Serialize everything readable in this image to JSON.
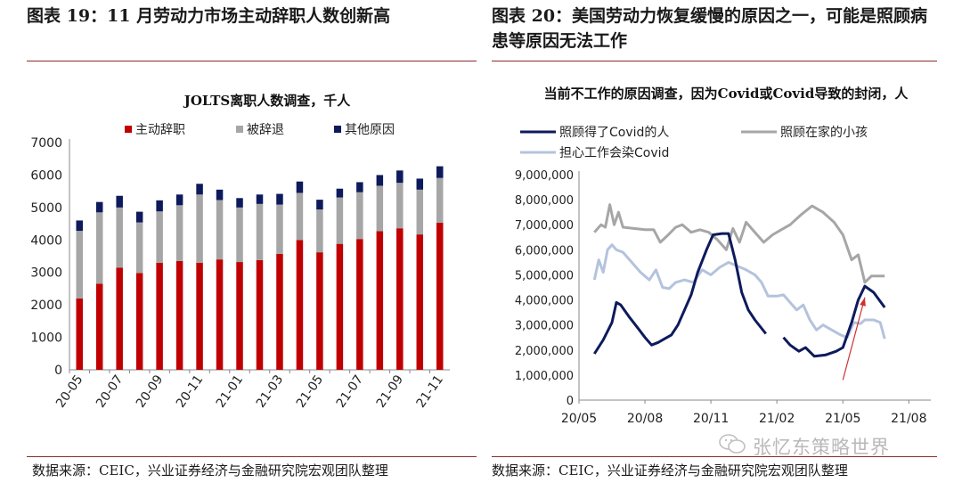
{
  "left_figure": {
    "title": "图表 19：11 月劳动力市场主动辞职人数创新高",
    "source": "数据来源：CEIC，兴业证券经济与金融研究院宏观团队整理"
  },
  "right_figure": {
    "title": "图表 20：美国劳动力恢复缓慢的原因之一，可能是照顾病患等原因无法工作",
    "source": "数据来源：CEIC，兴业证券经济与金融研究院宏观团队整理"
  },
  "watermark": "张忆东策略世界",
  "colors": {
    "quit": "#c00000",
    "fired": "#a6a6a6",
    "other": "#0d1a5c",
    "covid": "#0d1a5c",
    "children": "#a6a6a6",
    "worry": "#b4c3dd",
    "arrow": "#d03030"
  },
  "chart_data": [
    {
      "type": "bar",
      "stacked": true,
      "title": "JOLTS离职人数调查，千人",
      "categories": [
        "20-05",
        "20-06",
        "20-07",
        "20-08",
        "20-09",
        "20-10",
        "20-11",
        "20-12",
        "21-01",
        "21-02",
        "21-03",
        "21-04",
        "21-05",
        "21-06",
        "21-07",
        "21-08",
        "21-09",
        "21-10",
        "21-11"
      ],
      "tick_labels": [
        "20-05",
        "20-07",
        "20-09",
        "20-11",
        "21-01",
        "21-03",
        "21-05",
        "21-07",
        "21-09",
        "21-11"
      ],
      "series": [
        {
          "name": "主动辞职",
          "values": [
            2200,
            2650,
            3150,
            2980,
            3300,
            3350,
            3300,
            3400,
            3320,
            3380,
            3570,
            4000,
            3620,
            3880,
            4030,
            4270,
            4360,
            4170,
            4530
          ]
        },
        {
          "name": "被辞退",
          "values": [
            2080,
            2200,
            1850,
            1560,
            1580,
            1720,
            2100,
            1830,
            1680,
            1730,
            1520,
            1450,
            1320,
            1430,
            1440,
            1400,
            1400,
            1380,
            1380
          ]
        },
        {
          "name": "其他原因",
          "values": [
            320,
            320,
            360,
            330,
            340,
            330,
            330,
            320,
            290,
            290,
            330,
            350,
            300,
            270,
            310,
            330,
            380,
            340,
            360
          ]
        }
      ],
      "ylim": [
        0,
        7000
      ],
      "yticks": [
        "0",
        "1000",
        "2000",
        "3000",
        "4000",
        "5000",
        "6000",
        "7000"
      ],
      "legend_position": "top"
    },
    {
      "type": "line",
      "title": "当前不工作的原因调查，因为Covid或Covid导致的封闭，人",
      "x_labels": [
        "20/05",
        "20/08",
        "20/11",
        "21/02",
        "21/05",
        "21/08"
      ],
      "x_range": [
        0,
        16
      ],
      "ylim": [
        0,
        9000000
      ],
      "yticks": [
        "0",
        "1,000,000",
        "2,000,000",
        "3,000,000",
        "4,000,000",
        "5,000,000",
        "6,000,000",
        "7,000,000",
        "8,000,000",
        "9,000,000"
      ],
      "series": [
        {
          "name": "照顾得了Covid的人",
          "segments": [
            [
              [
                0.7,
                1850000
              ],
              [
                1.1,
                2400000
              ],
              [
                1.5,
                3100000
              ],
              [
                1.7,
                3900000
              ],
              [
                1.9,
                3800000
              ],
              [
                2.3,
                3300000
              ],
              [
                2.7,
                2850000
              ],
              [
                3.0,
                2500000
              ],
              [
                3.3,
                2200000
              ],
              [
                3.6,
                2300000
              ],
              [
                3.9,
                2450000
              ],
              [
                4.2,
                2600000
              ],
              [
                4.5,
                3000000
              ],
              [
                4.8,
                3600000
              ],
              [
                5.1,
                4200000
              ],
              [
                5.4,
                5100000
              ],
              [
                5.8,
                6000000
              ],
              [
                6.1,
                6600000
              ],
              [
                6.5,
                6650000
              ],
              [
                6.8,
                6650000
              ],
              [
                7.1,
                5600000
              ],
              [
                7.4,
                4300000
              ],
              [
                7.7,
                3600000
              ],
              [
                8.0,
                3200000
              ],
              [
                8.5,
                2650000
              ]
            ],
            [
              [
                9.3,
                2500000
              ],
              [
                9.6,
                2200000
              ],
              [
                10.0,
                1950000
              ],
              [
                10.3,
                2100000
              ],
              [
                10.7,
                1750000
              ],
              [
                11.2,
                1800000
              ],
              [
                11.7,
                1950000
              ],
              [
                12.0,
                2100000
              ],
              [
                12.4,
                3100000
              ],
              [
                12.7,
                4000000
              ],
              [
                13.0,
                4550000
              ],
              [
                13.4,
                4300000
              ],
              [
                13.9,
                3700000
              ]
            ]
          ]
        },
        {
          "name": "照顾在家的小孩",
          "segments": [
            [
              [
                0.7,
                6700000
              ],
              [
                1.0,
                7000000
              ],
              [
                1.2,
                6900000
              ],
              [
                1.4,
                7800000
              ],
              [
                1.6,
                7000000
              ],
              [
                1.8,
                7500000
              ],
              [
                2.0,
                6900000
              ],
              [
                2.5,
                6850000
              ],
              [
                3.0,
                6800000
              ],
              [
                3.4,
                6800000
              ],
              [
                3.7,
                6300000
              ],
              [
                4.0,
                6550000
              ],
              [
                4.4,
                6900000
              ],
              [
                4.7,
                7000000
              ],
              [
                5.1,
                6700000
              ],
              [
                5.5,
                6800000
              ],
              [
                5.9,
                6700000
              ],
              [
                6.3,
                6400000
              ],
              [
                6.7,
                6000000
              ],
              [
                7.0,
                6850000
              ],
              [
                7.3,
                6300000
              ],
              [
                7.6,
                7100000
              ],
              [
                8.0,
                6700000
              ],
              [
                8.4,
                6300000
              ],
              [
                8.8,
                6600000
              ],
              [
                9.2,
                6800000
              ],
              [
                9.6,
                7000000
              ],
              [
                10.1,
                7400000
              ],
              [
                10.6,
                7750000
              ],
              [
                11.1,
                7500000
              ],
              [
                11.6,
                7100000
              ],
              [
                12.0,
                6600000
              ],
              [
                12.4,
                5600000
              ],
              [
                12.7,
                5800000
              ],
              [
                13.0,
                4700000
              ],
              [
                13.3,
                4950000
              ],
              [
                13.9,
                4950000
              ]
            ]
          ]
        },
        {
          "name": "担心工作会染Covid",
          "segments": [
            [
              [
                0.7,
                4800000
              ],
              [
                0.9,
                5600000
              ],
              [
                1.1,
                5100000
              ],
              [
                1.3,
                6000000
              ],
              [
                1.5,
                6200000
              ],
              [
                1.7,
                6000000
              ],
              [
                2.0,
                5900000
              ],
              [
                2.4,
                5500000
              ],
              [
                2.8,
                5100000
              ],
              [
                3.2,
                4800000
              ],
              [
                3.5,
                5200000
              ],
              [
                3.8,
                4500000
              ],
              [
                4.1,
                4450000
              ],
              [
                4.4,
                4700000
              ],
              [
                4.8,
                4800000
              ],
              [
                5.2,
                4700000
              ],
              [
                5.6,
                5200000
              ],
              [
                6.0,
                5000000
              ],
              [
                6.4,
                5300000
              ],
              [
                6.8,
                5500000
              ],
              [
                7.2,
                5350000
              ],
              [
                7.6,
                5200000
              ],
              [
                8.0,
                5000000
              ],
              [
                8.3,
                4700000
              ],
              [
                8.6,
                4150000
              ],
              [
                9.0,
                4150000
              ],
              [
                9.3,
                4200000
              ],
              [
                9.6,
                3900000
              ],
              [
                9.9,
                3600000
              ],
              [
                10.2,
                3800000
              ],
              [
                10.5,
                3200000
              ],
              [
                10.8,
                2800000
              ],
              [
                11.1,
                3000000
              ],
              [
                11.5,
                2800000
              ],
              [
                11.9,
                2600000
              ],
              [
                12.2,
                2500000
              ],
              [
                12.5,
                3100000
              ],
              [
                12.8,
                3050000
              ],
              [
                13.0,
                3200000
              ],
              [
                13.4,
                3200000
              ],
              [
                13.7,
                3100000
              ],
              [
                13.9,
                2450000
              ]
            ]
          ]
        }
      ],
      "legend_position": "top"
    }
  ]
}
